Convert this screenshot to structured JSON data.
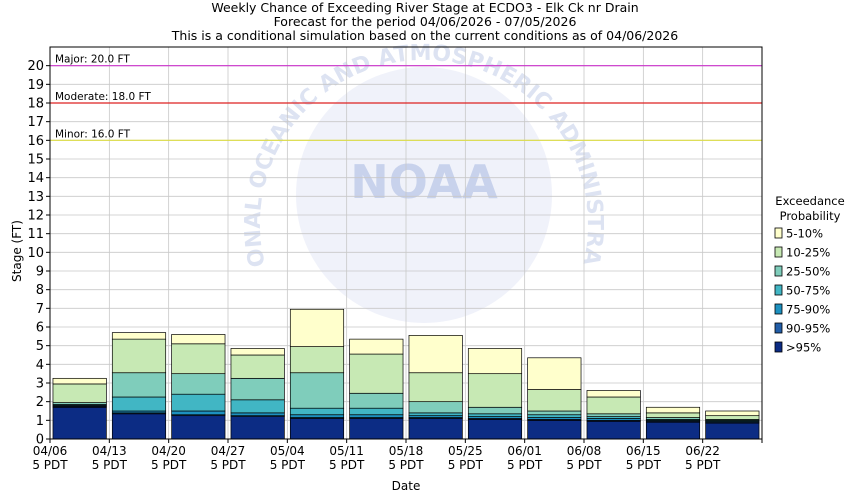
{
  "chart_data": {
    "type": "bar",
    "title_lines": [
      "Weekly Chance of Exceeding River Stage at ECDO3 - Elk Ck nr Drain",
      "Forecast for the period 04/06/2026 - 07/05/2026",
      "This is a conditional simulation based on the current conditions as of 04/06/2026"
    ],
    "xlabel": "Date",
    "ylabel": "Stage (FT)",
    "ylim": [
      0,
      21
    ],
    "yticks": [
      0,
      1,
      2,
      3,
      4,
      5,
      6,
      7,
      8,
      9,
      10,
      11,
      12,
      13,
      14,
      15,
      16,
      17,
      18,
      19,
      20
    ],
    "xticks": [
      [
        "04/06",
        "5 PDT"
      ],
      [
        "04/13",
        "5 PDT"
      ],
      [
        "04/20",
        "5 PDT"
      ],
      [
        "04/27",
        "5 PDT"
      ],
      [
        "05/04",
        "5 PDT"
      ],
      [
        "05/11",
        "5 PDT"
      ],
      [
        "05/18",
        "5 PDT"
      ],
      [
        "05/25",
        "5 PDT"
      ],
      [
        "06/01",
        "5 PDT"
      ],
      [
        "06/08",
        "5 PDT"
      ],
      [
        "06/15",
        "5 PDT"
      ],
      [
        "06/22",
        "5 PDT"
      ]
    ],
    "grid": true,
    "legend": {
      "title_lines": [
        "Exceedance",
        "Probability"
      ],
      "placement": "right",
      "entries": [
        {
          "label": "5-10%",
          "color": "#ffffcc"
        },
        {
          "label": "10-25%",
          "color": "#c7e9b4"
        },
        {
          "label": "25-50%",
          "color": "#7fcdbb"
        },
        {
          "label": "50-75%",
          "color": "#41b6c4"
        },
        {
          "label": "75-90%",
          "color": "#1d91c0"
        },
        {
          "label": "90-95%",
          "color": "#225ea8"
        },
        {
          "label": ">95%",
          "color": "#0c2c84"
        }
      ]
    },
    "flood_lines": [
      {
        "label": "Major: 20.0 FT",
        "value": 20.0,
        "color": "#cc33cc"
      },
      {
        "label": "Moderate: 18.0 FT",
        "value": 18.0,
        "color": "#dd2222"
      },
      {
        "label": "Minor: 16.0 FT",
        "value": 16.0,
        "color": "#dddd44"
      }
    ],
    "series_order": [
      ">95%",
      "90-95%",
      "75-90%",
      "50-75%",
      "25-50%",
      "10-25%",
      "5-10%"
    ],
    "weeks": [
      {
        "x": "04/06",
        "tops": [
          1.7,
          1.75,
          1.8,
          1.85,
          1.95,
          2.95,
          3.25
        ]
      },
      {
        "x": "04/13",
        "tops": [
          1.35,
          1.4,
          1.5,
          2.25,
          3.55,
          5.35,
          5.7
        ]
      },
      {
        "x": "04/20",
        "tops": [
          1.25,
          1.3,
          1.5,
          2.4,
          3.5,
          5.1,
          5.6
        ]
      },
      {
        "x": "04/27",
        "tops": [
          1.2,
          1.25,
          1.4,
          2.1,
          3.25,
          4.5,
          4.85
        ]
      },
      {
        "x": "05/04",
        "tops": [
          1.1,
          1.15,
          1.3,
          1.65,
          3.55,
          4.95,
          6.95
        ]
      },
      {
        "x": "05/11",
        "tops": [
          1.1,
          1.15,
          1.3,
          1.65,
          2.45,
          4.55,
          5.35
        ]
      },
      {
        "x": "05/18",
        "tops": [
          1.1,
          1.15,
          1.25,
          1.4,
          2.0,
          3.55,
          5.55
        ]
      },
      {
        "x": "05/25",
        "tops": [
          1.05,
          1.1,
          1.2,
          1.35,
          1.7,
          3.5,
          4.85
        ]
      },
      {
        "x": "06/01",
        "tops": [
          1.0,
          1.05,
          1.15,
          1.3,
          1.5,
          2.65,
          4.35
        ]
      },
      {
        "x": "06/08",
        "tops": [
          0.95,
          1.0,
          1.1,
          1.2,
          1.35,
          2.25,
          2.6
        ]
      },
      {
        "x": "06/15",
        "tops": [
          0.9,
          0.95,
          1.0,
          1.05,
          1.15,
          1.4,
          1.7
        ]
      },
      {
        "x": "06/22",
        "tops": [
          0.85,
          0.9,
          0.95,
          1.0,
          1.05,
          1.25,
          1.5
        ]
      }
    ]
  },
  "watermark": {
    "logo_text": "NOAA",
    "ring_text": "NATIONAL OCEANIC AND ATMOSPHERIC ADMINISTRATION",
    "ring_color": "#dde3f2",
    "logo_color": "#c8d2ec"
  },
  "colors": {
    "grid": "#c8c8c8",
    "bar_stroke": "#000000",
    "axis": "#000000"
  }
}
